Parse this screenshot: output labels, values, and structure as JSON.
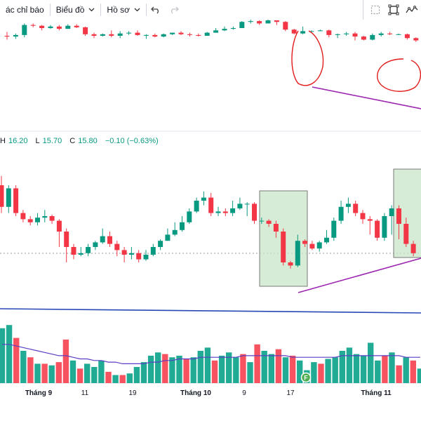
{
  "toolbar": {
    "indicators_label": "ác chỉ báo",
    "chart_label": "Biểu đồ",
    "profile_label": "Hồ sơ"
  },
  "legend": {
    "h_key": "H",
    "h_val": "16.20",
    "l_key": "L",
    "l_val": "15.70",
    "c_key": "C",
    "c_val": "15.80",
    "change": "−0.10 (−0.63%)"
  },
  "colors": {
    "up": "#089981",
    "down": "#f23645",
    "up_volume": "#22ab94",
    "down_volume": "#f7525f",
    "annotation_red": "#e21b1b",
    "annotation_purple": "#9c27b0",
    "box_fill": "#c8e6c9",
    "hline_blue": "#2948b8",
    "ma_line": "#5b3cc4"
  },
  "chart_data": [
    {
      "type": "candlestick",
      "panel": "upper",
      "candles": [
        [
          90,
          89,
          95,
          85
        ],
        [
          89,
          91,
          93,
          86
        ],
        [
          91,
          104,
          106,
          88
        ],
        [
          104,
          103,
          106,
          101
        ],
        [
          103,
          100,
          104,
          97
        ],
        [
          100,
          102,
          104,
          99
        ],
        [
          102,
          99,
          104,
          97
        ],
        [
          99,
          103,
          105,
          99
        ],
        [
          103,
          101,
          105,
          100
        ],
        [
          101,
          92,
          102,
          90
        ],
        [
          92,
          90,
          94,
          87
        ],
        [
          90,
          92,
          93,
          89
        ],
        [
          92,
          90,
          97,
          88
        ],
        [
          90,
          93,
          96,
          87
        ],
        [
          93,
          94,
          96,
          91
        ],
        [
          94,
          91,
          97,
          90
        ],
        [
          91,
          91,
          92,
          86
        ],
        [
          91,
          89,
          93,
          88
        ],
        [
          89,
          92,
          93,
          88
        ],
        [
          92,
          94,
          94,
          91
        ],
        [
          94,
          92,
          96,
          91
        ],
        [
          92,
          91,
          94,
          89
        ],
        [
          91,
          90,
          93,
          89
        ],
        [
          90,
          94,
          95,
          90
        ],
        [
          94,
          97,
          100,
          94
        ],
        [
          97,
          99,
          102,
          96
        ],
        [
          99,
          100,
          102,
          98
        ],
        [
          100,
          108,
          109,
          100
        ],
        [
          108,
          109,
          111,
          106
        ],
        [
          109,
          106,
          110,
          104
        ],
        [
          106,
          110,
          112,
          106
        ],
        [
          110,
          108,
          110,
          104
        ],
        [
          108,
          98,
          109,
          96
        ],
        [
          98,
          93,
          99,
          92
        ],
        [
          93,
          96,
          102,
          92
        ],
        [
          96,
          96,
          97,
          95
        ],
        [
          96,
          97,
          98,
          96
        ],
        [
          97,
          91,
          98,
          88
        ],
        [
          91,
          92,
          93,
          87
        ],
        [
          92,
          93,
          95,
          90
        ],
        [
          93,
          89,
          95,
          84
        ],
        [
          89,
          85,
          90,
          84
        ],
        [
          85,
          91,
          93,
          84
        ],
        [
          91,
          93,
          95,
          89
        ],
        [
          93,
          92,
          95,
          91
        ],
        [
          92,
          92,
          93,
          91
        ],
        [
          92,
          87,
          93,
          85
        ],
        [
          87,
          84,
          88,
          82
        ]
      ]
    },
    {
      "type": "candlestick",
      "panel": "lower",
      "candles": [
        [
          80,
          66,
          86,
          62
        ],
        [
          66,
          78,
          80,
          62
        ],
        [
          78,
          62,
          80,
          60
        ],
        [
          62,
          58,
          64,
          56
        ],
        [
          58,
          56,
          60,
          54
        ],
        [
          56,
          59,
          62,
          54
        ],
        [
          59,
          60,
          64,
          56
        ],
        [
          60,
          57,
          61,
          55
        ],
        [
          57,
          50,
          58,
          40
        ],
        [
          50,
          40,
          52,
          30
        ],
        [
          40,
          35,
          42,
          32
        ],
        [
          35,
          36,
          40,
          34
        ],
        [
          36,
          40,
          42,
          34
        ],
        [
          40,
          43,
          44,
          38
        ],
        [
          43,
          47,
          52,
          42
        ],
        [
          47,
          42,
          50,
          40
        ],
        [
          42,
          38,
          44,
          34
        ],
        [
          38,
          35,
          40,
          30
        ],
        [
          35,
          36,
          40,
          32
        ],
        [
          36,
          32,
          38,
          30
        ],
        [
          32,
          35,
          38,
          31
        ],
        [
          35,
          40,
          42,
          34
        ],
        [
          40,
          44,
          45,
          38
        ],
        [
          44,
          48,
          52,
          44
        ],
        [
          48,
          51,
          56,
          47
        ],
        [
          51,
          56,
          60,
          50
        ],
        [
          56,
          63,
          65,
          55
        ],
        [
          63,
          70,
          72,
          62
        ],
        [
          70,
          72,
          76,
          67
        ],
        [
          72,
          62,
          75,
          60
        ],
        [
          62,
          63,
          66,
          60
        ],
        [
          63,
          62,
          65,
          60
        ],
        [
          62,
          65,
          70,
          60
        ],
        [
          65,
          68,
          72,
          64
        ],
        [
          68,
          68,
          69,
          60
        ],
        [
          68,
          57,
          69,
          55
        ],
        [
          57,
          57,
          59,
          55
        ],
        [
          57,
          55,
          58,
          53
        ],
        [
          55,
          50,
          57,
          46
        ],
        [
          50,
          30,
          52,
          28
        ],
        [
          30,
          28,
          31,
          26
        ],
        [
          28,
          44,
          48,
          27
        ],
        [
          44,
          42,
          45,
          40
        ],
        [
          42,
          39,
          44,
          38
        ],
        [
          39,
          43,
          44,
          37
        ],
        [
          43,
          46,
          51,
          42
        ],
        [
          46,
          57,
          59,
          44
        ],
        [
          57,
          66,
          70,
          55
        ],
        [
          66,
          68,
          72,
          62
        ],
        [
          68,
          62,
          70,
          60
        ],
        [
          62,
          58,
          64,
          55
        ],
        [
          58,
          57,
          60,
          48
        ],
        [
          57,
          46,
          58,
          44
        ],
        [
          46,
          60,
          62,
          44
        ],
        [
          60,
          65,
          67,
          48
        ],
        [
          65,
          55,
          67,
          45
        ],
        [
          55,
          42,
          59,
          40
        ],
        [
          42,
          36,
          44,
          34
        ]
      ]
    },
    {
      "type": "bar",
      "panel": "volume",
      "values": [
        [
          34,
          1
        ],
        [
          36,
          1
        ],
        [
          28,
          0
        ],
        [
          20,
          1
        ],
        [
          16,
          0
        ],
        [
          12,
          1
        ],
        [
          12,
          0
        ],
        [
          11,
          1
        ],
        [
          13,
          0
        ],
        [
          27,
          0
        ],
        [
          14,
          1
        ],
        [
          9,
          0
        ],
        [
          12,
          1
        ],
        [
          10,
          1
        ],
        [
          14,
          1
        ],
        [
          7,
          0
        ],
        [
          5,
          1
        ],
        [
          5,
          0
        ],
        [
          6,
          1
        ],
        [
          10,
          1
        ],
        [
          13,
          1
        ],
        [
          17,
          1
        ],
        [
          19,
          1
        ],
        [
          18,
          0
        ],
        [
          16,
          1
        ],
        [
          17,
          1
        ],
        [
          15,
          0
        ],
        [
          16,
          1
        ],
        [
          20,
          1
        ],
        [
          22,
          1
        ],
        [
          14,
          0
        ],
        [
          17,
          1
        ],
        [
          19,
          1
        ],
        [
          16,
          1
        ],
        [
          18,
          0
        ],
        [
          13,
          1
        ],
        [
          24,
          0
        ],
        [
          20,
          1
        ],
        [
          18,
          1
        ],
        [
          21,
          0
        ],
        [
          16,
          1
        ],
        [
          17,
          0
        ],
        [
          14,
          1
        ],
        [
          8,
          1
        ],
        [
          13,
          1
        ],
        [
          12,
          0
        ],
        [
          15,
          1
        ],
        [
          16,
          1
        ],
        [
          20,
          1
        ],
        [
          22,
          1
        ],
        [
          18,
          1
        ],
        [
          17,
          1
        ],
        [
          25,
          1
        ],
        [
          14,
          1
        ],
        [
          17,
          0
        ],
        [
          19,
          1
        ],
        [
          11,
          0
        ],
        [
          16,
          1
        ],
        [
          14,
          0
        ],
        [
          9,
          1
        ]
      ],
      "moving_average": [
        24,
        24,
        23,
        22,
        21,
        20,
        19,
        18,
        17,
        17,
        16,
        15,
        15,
        14,
        14,
        13,
        13,
        12,
        12,
        12,
        12,
        13,
        13,
        14,
        14,
        15,
        15,
        15,
        16,
        16,
        16,
        16,
        16,
        16,
        17,
        17,
        17,
        17,
        17,
        17,
        17,
        16,
        16,
        16,
        16,
        16,
        16,
        16,
        17,
        17,
        17,
        17,
        17,
        17,
        17,
        17,
        17,
        16,
        16,
        16
      ]
    }
  ],
  "x_axis": {
    "ticks": [
      {
        "label": "Tháng 9",
        "bold": true
      },
      {
        "label": "11",
        "bold": false
      },
      {
        "label": "19",
        "bold": false
      },
      {
        "label": "Tháng 10",
        "bold": true
      },
      {
        "label": "9",
        "bold": false
      },
      {
        "label": "17",
        "bold": false
      },
      {
        "label": "Tháng 11",
        "bold": true
      }
    ]
  },
  "event_marker": "F"
}
